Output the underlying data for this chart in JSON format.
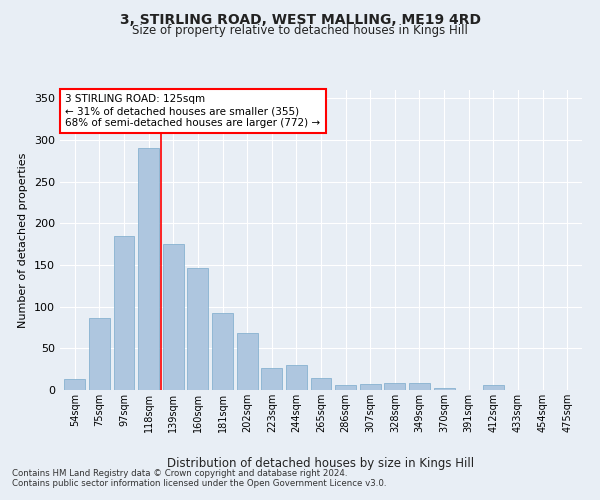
{
  "title1": "3, STIRLING ROAD, WEST MALLING, ME19 4RD",
  "title2": "Size of property relative to detached houses in Kings Hill",
  "xlabel": "Distribution of detached houses by size in Kings Hill",
  "ylabel": "Number of detached properties",
  "footnote1": "Contains HM Land Registry data © Crown copyright and database right 2024.",
  "footnote2": "Contains public sector information licensed under the Open Government Licence v3.0.",
  "annotation_line1": "3 STIRLING ROAD: 125sqm",
  "annotation_line2": "← 31% of detached houses are smaller (355)",
  "annotation_line3": "68% of semi-detached houses are larger (772) →",
  "bar_labels": [
    "54sqm",
    "75sqm",
    "97sqm",
    "118sqm",
    "139sqm",
    "160sqm",
    "181sqm",
    "202sqm",
    "223sqm",
    "244sqm",
    "265sqm",
    "286sqm",
    "307sqm",
    "328sqm",
    "349sqm",
    "370sqm",
    "391sqm",
    "412sqm",
    "433sqm",
    "454sqm",
    "475sqm"
  ],
  "bar_values": [
    13,
    86,
    185,
    290,
    175,
    147,
    92,
    68,
    26,
    30,
    14,
    6,
    7,
    9,
    8,
    3,
    0,
    6,
    0,
    0,
    0
  ],
  "bar_color": "#aec6df",
  "bar_edge_color": "#7aaacb",
  "ylim": [
    0,
    360
  ],
  "yticks": [
    0,
    50,
    100,
    150,
    200,
    250,
    300,
    350
  ],
  "bg_color": "#e8eef5",
  "plot_bg_color": "#e8eef5",
  "grid_color": "#ffffff",
  "red_line_x": 3.5
}
